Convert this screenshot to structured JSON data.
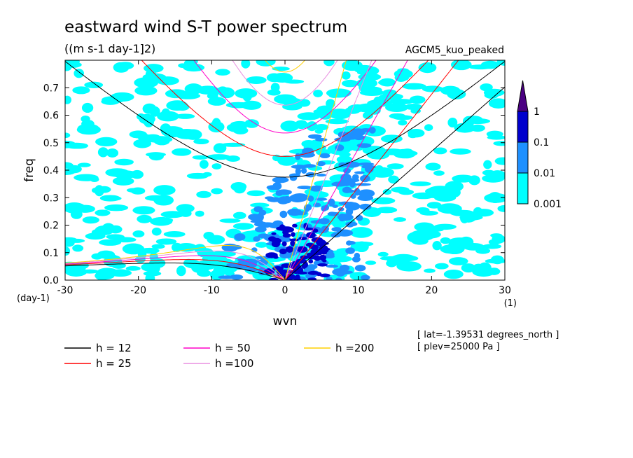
{
  "chart_data": {
    "type": "heatmap",
    "title": "eastward wind S-T power spectrum",
    "subtitle": "((m s-1 day-1]2)",
    "model_label": "AGCM5_kuo_peaked",
    "xlabel": "wvn",
    "ylabel": "freq",
    "x_unit": "(1)",
    "y_unit": "(day-1)",
    "xlim": [
      -30,
      30
    ],
    "ylim": [
      0,
      0.8
    ],
    "x_ticks": [
      "-30",
      "-20",
      "-10",
      "0",
      "10",
      "20",
      "30"
    ],
    "y_ticks": [
      "0.0",
      "0.1",
      "0.2",
      "0.3",
      "0.4",
      "0.5",
      "0.6",
      "0.7"
    ],
    "y_tick_values": [
      0,
      0.1,
      0.2,
      0.3,
      0.4,
      0.5,
      0.6,
      0.7
    ],
    "x_tick_values": [
      -30,
      -20,
      -10,
      0,
      10,
      20,
      30
    ],
    "colorbar": {
      "levels": [
        "0.001",
        "0.01",
        "0.1",
        "1"
      ],
      "colors": [
        "#00ffff",
        "#1e90ff",
        "#0000cd",
        "#4b0082"
      ]
    },
    "dispersion_curves": [
      {
        "name": "h = 12",
        "h": 12,
        "color": "#000000"
      },
      {
        "name": "h = 25",
        "h": 25,
        "color": "#ff0000"
      },
      {
        "name": "h = 50",
        "h": 50,
        "color": "#ff00c8"
      },
      {
        "name": "h =100",
        "h": 100,
        "color": "#e88fe0"
      },
      {
        "name": "h =200",
        "h": 200,
        "color": "#ffd000"
      }
    ],
    "annotations": [
      "[ lat=-1.39531 degrees_north ]",
      "[ plev=25000 Pa ]"
    ]
  }
}
